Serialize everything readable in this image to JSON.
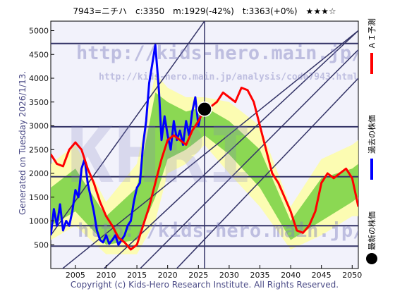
{
  "header": {
    "title": "7943=ニチハ　c:3350　m:1929(-42%)　t:3363(+0%)　★★★☆"
  },
  "side_text": "Generated on Tuesday 2026/1/13.",
  "footer": "Copyright (c) Kids-Hero Research Institute. All Rights Reserved.",
  "watermark": {
    "url": "http://kids-hero.main.jp/",
    "url2": "http://kids-hero.main.jp/analysis/code7943.html",
    "big": "KHRI"
  },
  "legend": {
    "forecast": "ＡＩ予測",
    "past": "過去の株価",
    "latest": "最新の株価"
  },
  "colors": {
    "forecast": "#ff0000",
    "past": "#0000ff",
    "latest": "#000000",
    "band_outer": "#ffff99",
    "band_inner": "#66cc33",
    "trend": "#333366"
  },
  "chart_data": {
    "type": "line",
    "title": "7943=ニチハ",
    "xlabel": "",
    "ylabel": "",
    "xlim": [
      2001,
      2051
    ],
    "ylim": [
      0,
      5200
    ],
    "x_ticks": [
      2005,
      2010,
      2015,
      2020,
      2025,
      2030,
      2035,
      2040,
      2045,
      2050
    ],
    "y_ticks": [
      500,
      1000,
      1500,
      2000,
      2500,
      3000,
      3500,
      4000,
      4500,
      5000
    ],
    "horizontal_levels": [
      470,
      900,
      1930,
      2980,
      4730
    ],
    "current": {
      "x": 2026.0,
      "y": 3350
    },
    "current_marker_line_x": 2026.0,
    "stats": {
      "c": 3350,
      "m": 1929,
      "m_pct": -42,
      "t": 3363,
      "t_pct": 0,
      "stars": 3
    },
    "series": [
      {
        "name": "過去の株価",
        "x": [
          2001.0,
          2001.5,
          2002.0,
          2002.5,
          2003.0,
          2003.5,
          2004.0,
          2004.5,
          2005.0,
          2005.5,
          2006.0,
          2006.5,
          2007.0,
          2007.5,
          2008.0,
          2008.5,
          2009.0,
          2009.5,
          2010.0,
          2010.5,
          2011.0,
          2011.5,
          2012.0,
          2012.5,
          2013.0,
          2013.5,
          2014.0,
          2014.5,
          2015.0,
          2015.5,
          2016.0,
          2016.5,
          2017.0,
          2017.5,
          2018.0,
          2018.3,
          2018.6,
          2019.0,
          2019.5,
          2020.0,
          2020.5,
          2021.0,
          2021.5,
          2022.0,
          2022.5,
          2023.0,
          2023.5,
          2024.0,
          2024.5,
          2025.0,
          2025.5,
          2026.0
        ],
        "values": [
          700,
          1250,
          900,
          1350,
          800,
          1000,
          900,
          1200,
          1650,
          1500,
          2100,
          2300,
          1800,
          1500,
          1200,
          800,
          600,
          550,
          700,
          520,
          600,
          700,
          500,
          600,
          700,
          900,
          1000,
          1400,
          1700,
          1800,
          2600,
          3100,
          3900,
          4300,
          4700,
          4200,
          3700,
          2700,
          3200,
          2800,
          2500,
          3100,
          2700,
          2900,
          2600,
          3100,
          2800,
          3300,
          3600,
          3000,
          3300,
          3350
        ]
      },
      {
        "name": "ＡＩ予測",
        "x": [
          2001.0,
          2002.0,
          2003.0,
          2004.0,
          2005.0,
          2006.0,
          2007.0,
          2008.0,
          2009.0,
          2010.0,
          2011.0,
          2012.0,
          2013.0,
          2014.0,
          2015.0,
          2016.0,
          2017.0,
          2018.0,
          2019.0,
          2020.0,
          2021.0,
          2022.0,
          2023.0,
          2024.0,
          2025.0,
          2026.0,
          2027.0,
          2028.0,
          2029.0,
          2030.0,
          2031.0,
          2032.0,
          2033.0,
          2034.0,
          2035.0,
          2036.0,
          2037.0,
          2038.0,
          2039.0,
          2040.0,
          2041.0,
          2042.0,
          2043.0,
          2044.0,
          2045.0,
          2046.0,
          2047.0,
          2048.0,
          2049.0,
          2050.0,
          2051.0
        ],
        "values": [
          2400,
          2200,
          2150,
          2500,
          2650,
          2500,
          2100,
          1800,
          1400,
          1100,
          900,
          650,
          550,
          400,
          500,
          900,
          1300,
          1800,
          2300,
          2700,
          2800,
          2700,
          2600,
          2900,
          3100,
          3350,
          3400,
          3500,
          3700,
          3600,
          3500,
          3800,
          3750,
          3500,
          3000,
          2500,
          2000,
          1800,
          1500,
          1200,
          800,
          750,
          900,
          1200,
          1800,
          2000,
          1900,
          2000,
          2100,
          1900,
          1300
        ]
      }
    ],
    "band_outer": {
      "x": [
        2001,
        2005,
        2010,
        2015,
        2018,
        2020,
        2023,
        2026,
        2030,
        2035,
        2040,
        2045,
        2050,
        2051
      ],
      "upper": [
        2200,
        2600,
        1400,
        2200,
        4100,
        3800,
        3600,
        3600,
        3500,
        3000,
        1300,
        2300,
        2600,
        2700
      ],
      "lower": [
        600,
        900,
        300,
        300,
        1000,
        2000,
        2200,
        2600,
        2000,
        1300,
        400,
        700,
        1100,
        1100
      ]
    },
    "band_inner": {
      "x": [
        2001,
        2005,
        2010,
        2015,
        2018,
        2020,
        2023,
        2026,
        2030,
        2035,
        2040,
        2045,
        2050,
        2051
      ],
      "upper": [
        1700,
        2100,
        1100,
        1700,
        3700,
        3500,
        3300,
        3400,
        3100,
        2500,
        1000,
        1900,
        2100,
        2200
      ],
      "lower": [
        900,
        1200,
        500,
        600,
        1500,
        2300,
        2500,
        2800,
        2400,
        1700,
        600,
        1000,
        1400,
        1500
      ]
    },
    "trend_lines": [
      {
        "x": [
          2001,
          2026
        ],
        "y": [
          700,
          5200
        ]
      },
      {
        "x": [
          2001,
          2051
        ],
        "y": [
          -200,
          5000
        ]
      },
      {
        "x": [
          2008,
          2051
        ],
        "y": [
          -200,
          5000
        ]
      },
      {
        "x": [
          2014,
          2051
        ],
        "y": [
          -200,
          4600
        ]
      },
      {
        "x": [
          2020,
          2051
        ],
        "y": [
          -200,
          4000
        ]
      }
    ]
  }
}
